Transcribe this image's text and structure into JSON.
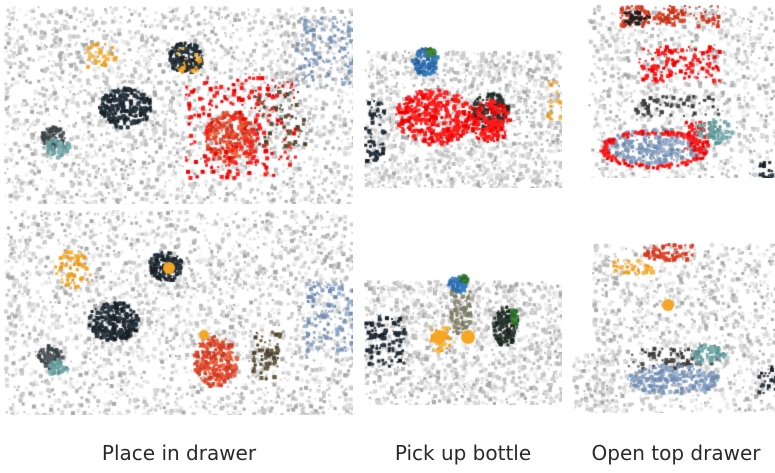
{
  "figure": {
    "captions": [
      "Place in drawer",
      "Pick up bottle",
      "Open top drawer"
    ],
    "columns": [
      {
        "task": "place-in-drawer",
        "top_panel": "point cloud with red heatmap over drawer and object",
        "bottom_panel": "point cloud with yellow keypoint on object"
      },
      {
        "task": "pick-up-bottle",
        "top_panel": "point cloud with red heatmap over bottle base",
        "bottom_panel": "point cloud with yellow keypoints near bottle"
      },
      {
        "task": "open-top-drawer",
        "top_panel": "point cloud with red heatmap over drawer edges",
        "bottom_panel": "point cloud with yellow keypoint on top drawer"
      }
    ],
    "colors": {
      "background": "#ffffff",
      "heatmap": "#ff1a1a",
      "keypoint": "#f5a623",
      "text": "#2a2a2a"
    }
  }
}
